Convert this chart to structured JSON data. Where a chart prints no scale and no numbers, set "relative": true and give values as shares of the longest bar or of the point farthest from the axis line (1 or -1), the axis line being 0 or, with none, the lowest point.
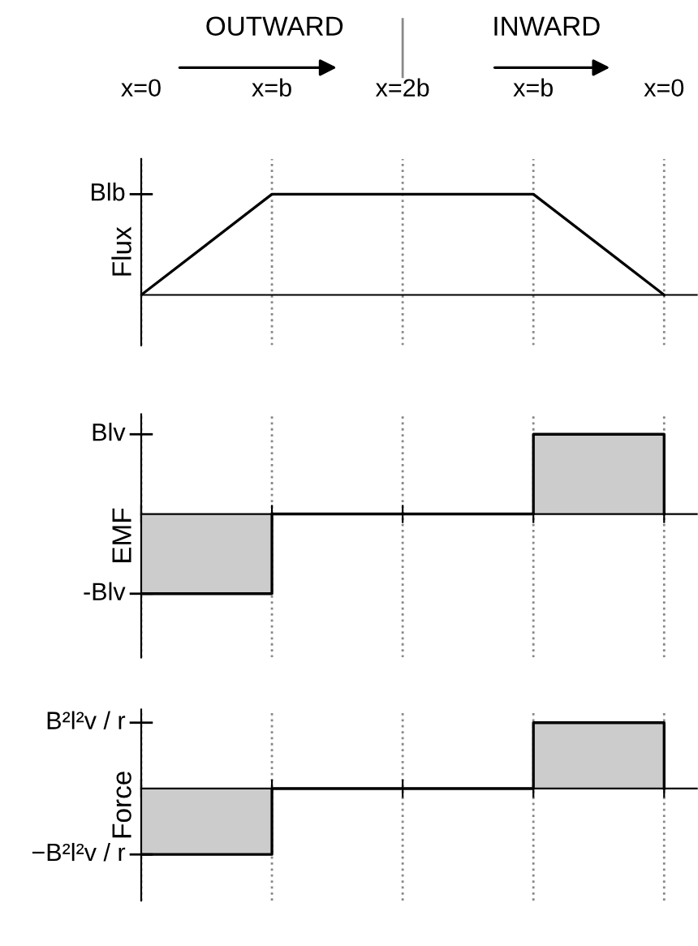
{
  "chart_data": [
    {
      "type": "line",
      "ylabel": "Flux",
      "relative": true,
      "categories": [
        "x=0",
        "x=b",
        "x=2b",
        "x=b",
        "x=0"
      ],
      "series": [
        {
          "values": [
            0,
            1,
            1,
            1,
            0
          ],
          "color": "#000000"
        }
      ],
      "annotations": [
        "OUTWARD",
        "INWARD",
        "Blb"
      ],
      "grid": "x",
      "legend": false
    },
    {
      "type": "step",
      "ylabel": "EMF",
      "relative": true,
      "categories": [
        null,
        null,
        null,
        null,
        null
      ],
      "series": [
        {
          "values": [
            -1,
            0,
            0,
            1,
            0
          ],
          "color": "#000000"
        }
      ],
      "annotations": [
        "Blv",
        "-Blv"
      ],
      "grid": "x",
      "legend": false
    },
    {
      "type": "step",
      "ylabel": "Force",
      "relative": true,
      "categories": [
        null,
        null,
        null,
        null,
        null
      ],
      "series": [
        {
          "values": [
            -1,
            0,
            0,
            1,
            0
          ],
          "color": "#000000"
        }
      ],
      "annotations": [
        "B²l²v / r",
        "−B²l²v / r"
      ],
      "grid": "x",
      "legend": false
    }
  ]
}
